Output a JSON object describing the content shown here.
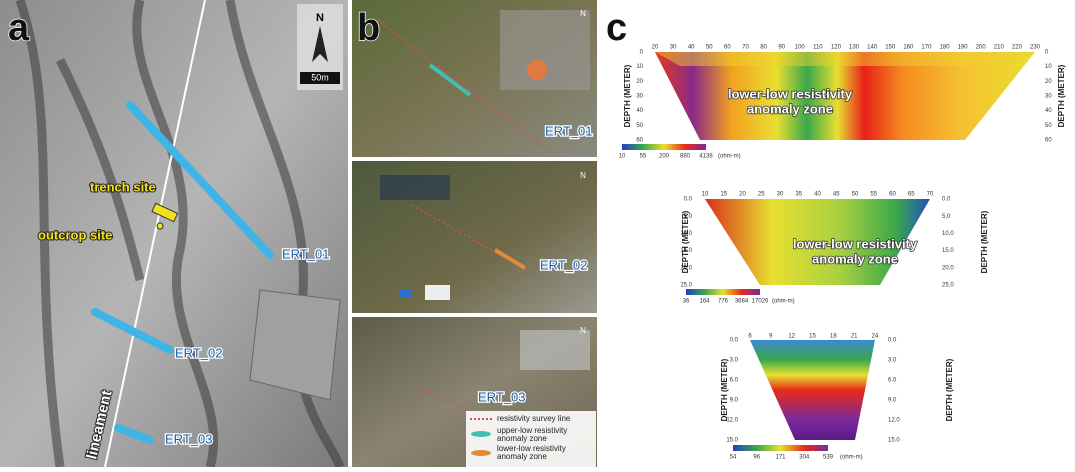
{
  "panel_a": {
    "label": "a",
    "north": "N",
    "scale": "50m",
    "trench": "trench site",
    "outcrop": "outcrop site",
    "lineament": "lineament",
    "lines": [
      "ERT_01",
      "ERT_02",
      "ERT_03"
    ]
  },
  "panel_b": {
    "label": "b",
    "north": "N",
    "lines": [
      "ERT_01",
      "ERT_02",
      "ERT_03"
    ],
    "legend": [
      [
        "resistivity survey line"
      ],
      [
        "upper-low resistivity",
        "anomaly zone"
      ],
      [
        "lower-low resistivity",
        "anomaly zone"
      ]
    ]
  },
  "panel_c": {
    "label": "c",
    "sections": [
      {
        "depth_title": "DEPTH (METER)",
        "anomaly": [
          "lower-low resistivity",
          "anomaly zone"
        ],
        "distance_ticks": [
          20,
          30,
          40,
          50,
          60,
          70,
          80,
          90,
          100,
          110,
          120,
          130,
          140,
          150,
          160,
          170,
          180,
          190,
          200,
          210,
          220,
          230
        ],
        "depth_ticks": [
          0,
          10,
          20,
          30,
          40,
          50,
          60
        ],
        "color_ticks": [
          10,
          55,
          200,
          860,
          4138
        ],
        "unit": "(ohm-m)"
      },
      {
        "depth_title": "DEPTH (METER)",
        "anomaly": [
          "lower-low resistivity",
          "anomaly zone"
        ],
        "distance_ticks": [
          10,
          15,
          20,
          25,
          30,
          35,
          40,
          45,
          50,
          55,
          60,
          65,
          70
        ],
        "depth_ticks": [
          "0.0",
          "5.0",
          "10.0",
          "15.0",
          "20.0",
          "25.0"
        ],
        "color_ticks": [
          36,
          164,
          776,
          3684,
          17026
        ],
        "unit": "(ohm-m)"
      },
      {
        "depth_title": "DEPTH (METER)",
        "distance_ticks": [
          6,
          9,
          12,
          15,
          18,
          21,
          24
        ],
        "depth_ticks": [
          "0.0",
          "3.0",
          "6.0",
          "9.0",
          "12.0",
          "15.0"
        ],
        "color_ticks": [
          54,
          96,
          171,
          304,
          539
        ],
        "unit": "(ohm-m)"
      }
    ]
  }
}
